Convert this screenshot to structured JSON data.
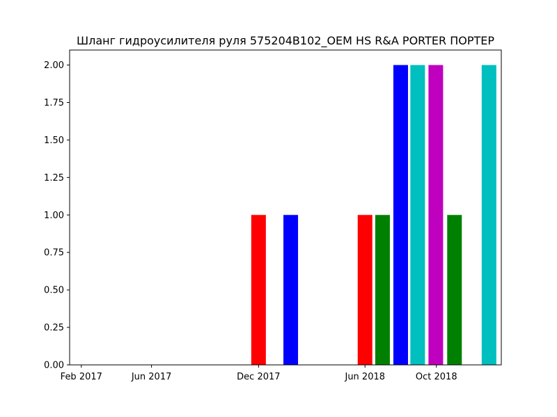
{
  "chart_data": {
    "type": "bar",
    "title": "Шланг гидроусилителя руля 575204B102_OEM HS R&A PORTER ПОРТЕР",
    "xlabel": "",
    "ylabel": "",
    "x_tick_labels": [
      "Feb 2017",
      "Jun 2017",
      "Dec 2017",
      "Jun 2018",
      "Oct 2018"
    ],
    "x_ticks": [
      "2017-02-01",
      "2017-06-01",
      "2017-12-01",
      "2018-06-01",
      "2018-10-01"
    ],
    "xlim": [
      "2017-01-12",
      "2019-01-20"
    ],
    "y_tick_labels": [
      "0.00",
      "0.25",
      "0.50",
      "0.75",
      "1.00",
      "1.25",
      "1.50",
      "1.75",
      "2.00"
    ],
    "ylim": [
      0,
      2.1
    ],
    "grid": false,
    "bars": [
      {
        "x": "2017-12-01",
        "value": 1,
        "color": "#ff0000"
      },
      {
        "x": "2018-01-25",
        "value": 1,
        "color": "#0000ff"
      },
      {
        "x": "2018-06-01",
        "value": 1,
        "color": "#ff0000"
      },
      {
        "x": "2018-07-01",
        "value": 1,
        "color": "#008000"
      },
      {
        "x": "2018-08-01",
        "value": 2,
        "color": "#0000ff"
      },
      {
        "x": "2018-08-30",
        "value": 2,
        "color": "#00bfbf"
      },
      {
        "x": "2018-09-30",
        "value": 2,
        "color": "#bf00bf"
      },
      {
        "x": "2018-11-01",
        "value": 1,
        "color": "#008000"
      },
      {
        "x": "2018-12-30",
        "value": 2,
        "color": "#00bfbf"
      }
    ]
  }
}
